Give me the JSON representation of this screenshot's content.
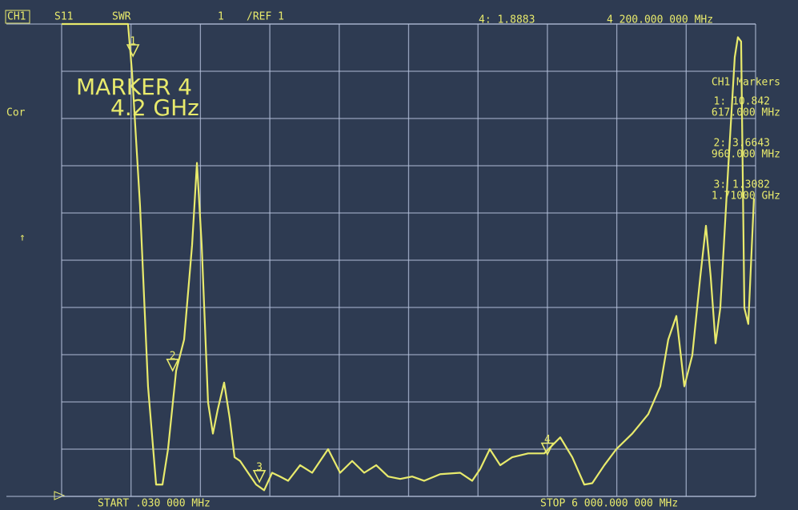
{
  "chart_data": {
    "type": "line",
    "header": {
      "channel": "CH1",
      "parameter": "S11",
      "format": "SWR",
      "scale": "1",
      "ref": "/REF 1",
      "active_readout": "4: 1.8883",
      "active_frequency": "4 200.000 000 MHz"
    },
    "annotation": [
      "MARKER 4",
      "4.2 GHz"
    ],
    "side_labels": [
      "Cor",
      "↑"
    ],
    "markers_title": "CH1 Markers",
    "start_label": "START .030 000 MHz",
    "stop_label": "STOP 6 000.000 000 MHz",
    "xlim": [
      0.03,
      6000
    ],
    "ylim": [
      1,
      11
    ],
    "divisions": [
      10,
      10
    ],
    "trace_color": "#e8ea6c",
    "grid": true,
    "x": [
      0.03,
      574,
      609,
      678,
      747,
      817,
      872,
      920,
      990,
      1059,
      1128,
      1170,
      1211,
      1266,
      1308,
      1349,
      1405,
      1453,
      1495,
      1543,
      1612,
      1682,
      1751,
      1820,
      1889,
      1958,
      2062,
      2166,
      2304,
      2408,
      2512,
      2616,
      2720,
      2823,
      2927,
      3031,
      3135,
      3273,
      3446,
      3550,
      3619,
      3702,
      3792,
      3896,
      4034,
      4173,
      4311,
      4415,
      4519,
      4588,
      4692,
      4796,
      4934,
      5072,
      5176,
      5245,
      5315,
      5384,
      5453,
      5522,
      5571,
      5612,
      5654,
      5695,
      5764,
      5820,
      5847,
      5875,
      5903,
      5937,
      5986
    ],
    "series": [
      {
        "values": [
          11,
          11,
          9.97,
          7.15,
          3.33,
          1.25,
          1.25,
          2.0,
          3.66,
          4.32,
          6.32,
          8.06,
          6.32,
          2.99,
          2.33,
          2.83,
          3.41,
          2.66,
          1.83,
          1.75,
          1.5,
          1.25,
          1.13,
          1.5,
          1.42,
          1.33,
          1.66,
          1.5,
          2.0,
          1.5,
          1.75,
          1.5,
          1.66,
          1.42,
          1.37,
          1.42,
          1.33,
          1.47,
          1.5,
          1.33,
          1.58,
          2.0,
          1.66,
          1.83,
          1.91,
          1.91,
          2.25,
          1.83,
          1.25,
          1.28,
          1.66,
          2.0,
          2.33,
          2.74,
          3.33,
          4.32,
          4.82,
          3.33,
          3.99,
          5.65,
          6.73,
          5.65,
          4.24,
          4.99,
          7.98,
          10.3,
          10.72,
          10.63,
          4.99,
          4.65,
          7.31
        ]
      }
    ],
    "markers": [
      {
        "label": "1",
        "x": 617,
        "value": 10.842,
        "readout": "1: 10.842",
        "x_label": "617.000 MHz"
      },
      {
        "label": "2",
        "x": 960,
        "value": 3.6643,
        "readout": "2: 3.6643",
        "x_label": "960.000 MHz"
      },
      {
        "label": "3",
        "x": 1710,
        "value": 1.3082,
        "readout": "3: 1.3082",
        "x_label": "1.71000 GHz"
      },
      {
        "label": "4",
        "x": 4200,
        "value": 1.8883
      }
    ]
  }
}
